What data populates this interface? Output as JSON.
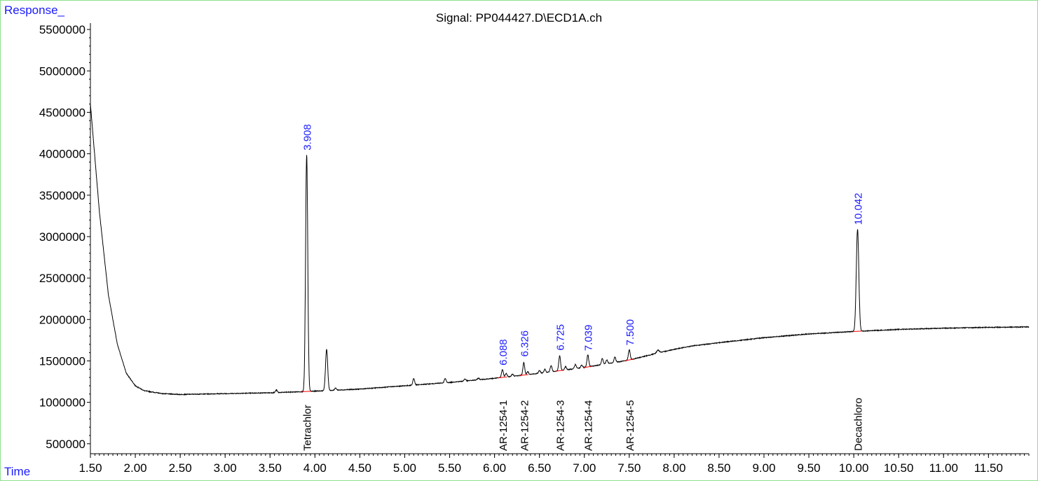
{
  "chart_data": {
    "type": "line",
    "title": "Signal: PP044427.D\\ECD1A.ch",
    "ylabel": "Response_",
    "xlabel": "Time",
    "xlim": [
      1.5,
      11.95
    ],
    "ylim": [
      380000,
      5560000
    ],
    "yticks": [
      500000,
      1000000,
      1500000,
      2000000,
      2500000,
      3000000,
      3500000,
      4000000,
      4500000,
      5000000,
      5500000
    ],
    "ytick_labels": [
      "500000",
      "1000000",
      "1500000",
      "2000000",
      "2500000",
      "3000000",
      "3500000",
      "4000000",
      "4500000",
      "5000000",
      "5500000"
    ],
    "xticks": [
      1.5,
      2.0,
      2.5,
      3.0,
      3.5,
      4.0,
      4.5,
      5.0,
      5.5,
      6.0,
      6.5,
      7.0,
      7.5,
      8.0,
      8.5,
      9.0,
      9.5,
      10.0,
      10.5,
      11.0,
      11.5
    ],
    "xtick_labels": [
      "1.50",
      "2.00",
      "2.50",
      "3.00",
      "3.50",
      "4.00",
      "4.50",
      "5.00",
      "5.50",
      "6.00",
      "6.50",
      "7.00",
      "7.50",
      "8.00",
      "8.50",
      "9.00",
      "9.50",
      "10.00",
      "10.50",
      "11.00",
      "11.50"
    ],
    "baseline": [
      [
        1.5,
        4600000
      ],
      [
        1.6,
        3300000
      ],
      [
        1.7,
        2300000
      ],
      [
        1.8,
        1700000
      ],
      [
        1.9,
        1350000
      ],
      [
        2.0,
        1200000
      ],
      [
        2.1,
        1140000
      ],
      [
        2.3,
        1105000
      ],
      [
        2.5,
        1095000
      ],
      [
        3.0,
        1105000
      ],
      [
        3.5,
        1115000
      ],
      [
        3.9,
        1130000
      ],
      [
        4.5,
        1160000
      ],
      [
        5.0,
        1200000
      ],
      [
        5.5,
        1240000
      ],
      [
        6.0,
        1290000
      ],
      [
        6.5,
        1350000
      ],
      [
        7.0,
        1420000
      ],
      [
        7.5,
        1510000
      ],
      [
        7.8,
        1590000
      ],
      [
        8.0,
        1640000
      ],
      [
        8.2,
        1680000
      ],
      [
        8.5,
        1720000
      ],
      [
        9.0,
        1780000
      ],
      [
        9.5,
        1825000
      ],
      [
        10.0,
        1855000
      ],
      [
        10.5,
        1880000
      ],
      [
        11.0,
        1895000
      ],
      [
        11.5,
        1905000
      ],
      [
        11.95,
        1910000
      ]
    ],
    "peaks": [
      {
        "t": 3.908,
        "h": 2860000,
        "w": 0.012
      },
      {
        "t": 4.13,
        "h": 500000,
        "w": 0.012
      },
      {
        "t": 3.57,
        "h": 30000,
        "w": 0.01
      },
      {
        "t": 4.23,
        "h": 25000,
        "w": 0.01
      },
      {
        "t": 5.1,
        "h": 80000,
        "w": 0.01
      },
      {
        "t": 5.45,
        "h": 50000,
        "w": 0.01
      },
      {
        "t": 5.67,
        "h": 25000,
        "w": 0.01
      },
      {
        "t": 5.82,
        "h": 20000,
        "w": 0.01
      },
      {
        "t": 6.088,
        "h": 95000,
        "w": 0.01
      },
      {
        "t": 6.13,
        "h": 45000,
        "w": 0.01
      },
      {
        "t": 6.2,
        "h": 25000,
        "w": 0.01
      },
      {
        "t": 6.326,
        "h": 150000,
        "w": 0.01
      },
      {
        "t": 6.37,
        "h": 35000,
        "w": 0.01
      },
      {
        "t": 6.5,
        "h": 35000,
        "w": 0.01
      },
      {
        "t": 6.56,
        "h": 40000,
        "w": 0.01
      },
      {
        "t": 6.63,
        "h": 75000,
        "w": 0.01
      },
      {
        "t": 6.725,
        "h": 180000,
        "w": 0.01
      },
      {
        "t": 6.79,
        "h": 40000,
        "w": 0.01
      },
      {
        "t": 6.9,
        "h": 50000,
        "w": 0.01
      },
      {
        "t": 6.97,
        "h": 35000,
        "w": 0.01
      },
      {
        "t": 7.039,
        "h": 145000,
        "w": 0.01
      },
      {
        "t": 7.2,
        "h": 75000,
        "w": 0.01
      },
      {
        "t": 7.25,
        "h": 45000,
        "w": 0.01
      },
      {
        "t": 7.34,
        "h": 65000,
        "w": 0.01
      },
      {
        "t": 7.5,
        "h": 125000,
        "w": 0.01
      },
      {
        "t": 7.82,
        "h": 35000,
        "w": 0.015
      },
      {
        "t": 10.042,
        "h": 1230000,
        "w": 0.014
      }
    ],
    "peak_labels": [
      {
        "t": 3.908,
        "label": "3.908",
        "top": 3990000
      },
      {
        "t": 6.088,
        "label": "6.088",
        "top": 1395000
      },
      {
        "t": 6.326,
        "label": "6.326",
        "top": 1500000
      },
      {
        "t": 6.725,
        "label": "6.725",
        "top": 1575000
      },
      {
        "t": 7.039,
        "label": "7.039",
        "top": 1570000
      },
      {
        "t": 7.5,
        "label": "7.500",
        "top": 1635000
      },
      {
        "t": 10.042,
        "label": "10.042",
        "top": 3090000
      }
    ],
    "compound_labels": [
      {
        "t": 3.908,
        "label": "Tetrachlor"
      },
      {
        "t": 6.088,
        "label": "AR-1254-1"
      },
      {
        "t": 6.326,
        "label": "AR-1254-2"
      },
      {
        "t": 6.725,
        "label": "AR-1254-3"
      },
      {
        "t": 7.039,
        "label": "AR-1254-4"
      },
      {
        "t": 7.5,
        "label": "AR-1254-5"
      },
      {
        "t": 10.042,
        "label": "Decachloro"
      }
    ],
    "grid": false,
    "colors": {
      "signal": "#000000",
      "axes": "#000000",
      "peak_label": "#1a1aff",
      "corner_label": "#1a1aff",
      "integration": "#ff0000",
      "frame": "#8de08d"
    }
  }
}
